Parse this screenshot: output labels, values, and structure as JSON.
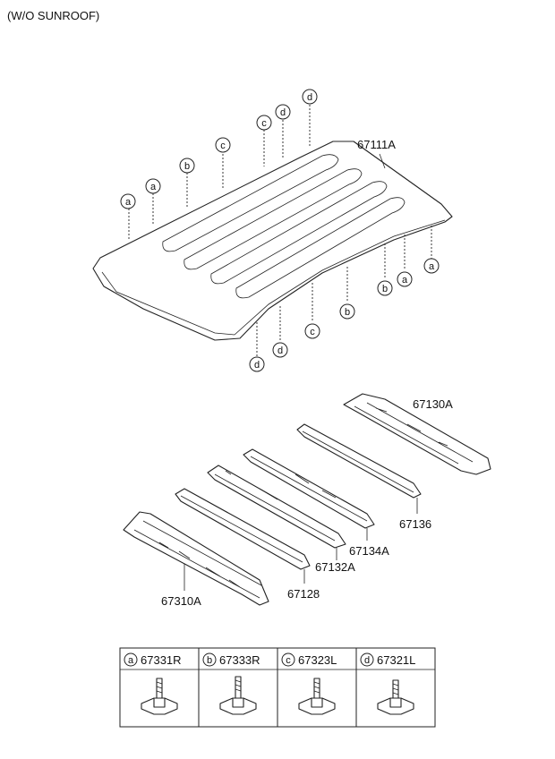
{
  "title": "(W/O SUNROOF)",
  "parts": {
    "roof_panel": "67111A",
    "rear_rail": "67130A",
    "bow_1": "67136",
    "bow_2": "67134A",
    "bow_3": "67132A",
    "bow_4": "67128",
    "front_rail": "67310A"
  },
  "callouts": {
    "a": "a",
    "b": "b",
    "c": "c",
    "d": "d"
  },
  "legend": [
    {
      "letter": "a",
      "part": "67331R"
    },
    {
      "letter": "b",
      "part": "67333R"
    },
    {
      "letter": "c",
      "part": "67323L"
    },
    {
      "letter": "d",
      "part": "67321L"
    }
  ]
}
